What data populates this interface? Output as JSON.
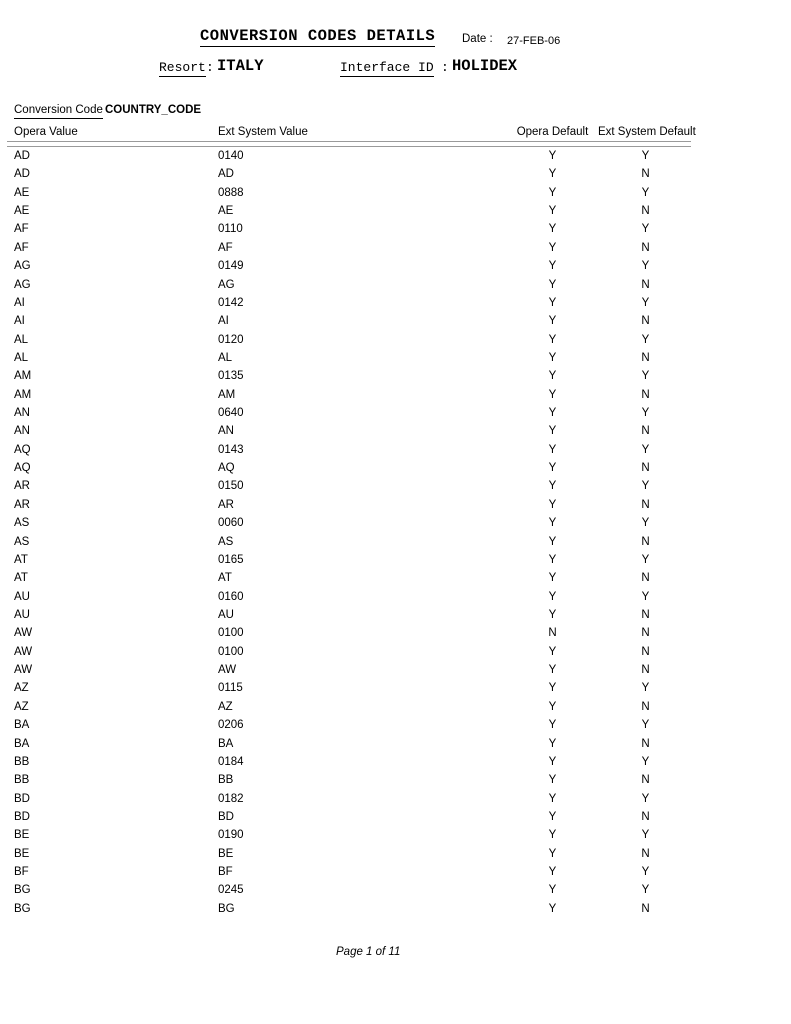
{
  "header": {
    "title": "CONVERSION CODES DETAILS",
    "date_label": "Date :",
    "date_value": "27-FEB-06",
    "resort_label": "Resort",
    "resort_separator": ":",
    "resort_value": "ITALY",
    "interface_label": "Interface ID",
    "interface_separator": ":",
    "interface_value": "HOLIDEX"
  },
  "section": {
    "conversion_code_label": "Conversion Code",
    "conversion_code_value": "COUNTRY_CODE"
  },
  "table": {
    "columns": [
      "Opera Value",
      "Ext System Value",
      "Opera Default",
      "Ext System Default"
    ],
    "rows": [
      [
        "AD",
        "0140",
        "Y",
        "Y"
      ],
      [
        "AD",
        "AD",
        "Y",
        "N"
      ],
      [
        "AE",
        "0888",
        "Y",
        "Y"
      ],
      [
        "AE",
        "AE",
        "Y",
        "N"
      ],
      [
        "AF",
        "0110",
        "Y",
        "Y"
      ],
      [
        "AF",
        "AF",
        "Y",
        "N"
      ],
      [
        "AG",
        "0149",
        "Y",
        "Y"
      ],
      [
        "AG",
        "AG",
        "Y",
        "N"
      ],
      [
        "AI",
        "0142",
        "Y",
        "Y"
      ],
      [
        "AI",
        "AI",
        "Y",
        "N"
      ],
      [
        "AL",
        "0120",
        "Y",
        "Y"
      ],
      [
        "AL",
        "AL",
        "Y",
        "N"
      ],
      [
        "AM",
        "0135",
        "Y",
        "Y"
      ],
      [
        "AM",
        "AM",
        "Y",
        "N"
      ],
      [
        "AN",
        "0640",
        "Y",
        "Y"
      ],
      [
        "AN",
        "AN",
        "Y",
        "N"
      ],
      [
        "AQ",
        "0143",
        "Y",
        "Y"
      ],
      [
        "AQ",
        "AQ",
        "Y",
        "N"
      ],
      [
        "AR",
        "0150",
        "Y",
        "Y"
      ],
      [
        "AR",
        "AR",
        "Y",
        "N"
      ],
      [
        "AS",
        "0060",
        "Y",
        "Y"
      ],
      [
        "AS",
        "AS",
        "Y",
        "N"
      ],
      [
        "AT",
        "0165",
        "Y",
        "Y"
      ],
      [
        "AT",
        "AT",
        "Y",
        "N"
      ],
      [
        "AU",
        "0160",
        "Y",
        "Y"
      ],
      [
        "AU",
        "AU",
        "Y",
        "N"
      ],
      [
        "AW",
        "0100",
        "N",
        "N"
      ],
      [
        "AW",
        "0100",
        "Y",
        "N"
      ],
      [
        "AW",
        "AW",
        "Y",
        "N"
      ],
      [
        "AZ",
        "0115",
        "Y",
        "Y"
      ],
      [
        "AZ",
        "AZ",
        "Y",
        "N"
      ],
      [
        "BA",
        "0206",
        "Y",
        "Y"
      ],
      [
        "BA",
        "BA",
        "Y",
        "N"
      ],
      [
        "BB",
        "0184",
        "Y",
        "Y"
      ],
      [
        "BB",
        "BB",
        "Y",
        "N"
      ],
      [
        "BD",
        "0182",
        "Y",
        "Y"
      ],
      [
        "BD",
        "BD",
        "Y",
        "N"
      ],
      [
        "BE",
        "0190",
        "Y",
        "Y"
      ],
      [
        "BE",
        "BE",
        "Y",
        "N"
      ],
      [
        "BF",
        "BF",
        "Y",
        "Y"
      ],
      [
        "BG",
        "0245",
        "Y",
        "Y"
      ],
      [
        "BG",
        "BG",
        "Y",
        "N"
      ]
    ]
  },
  "footer": {
    "page_text": "Page 1 of 11"
  },
  "colors": {
    "text": "#000000",
    "rule": "#9a9a9a",
    "background": "#ffffff"
  }
}
